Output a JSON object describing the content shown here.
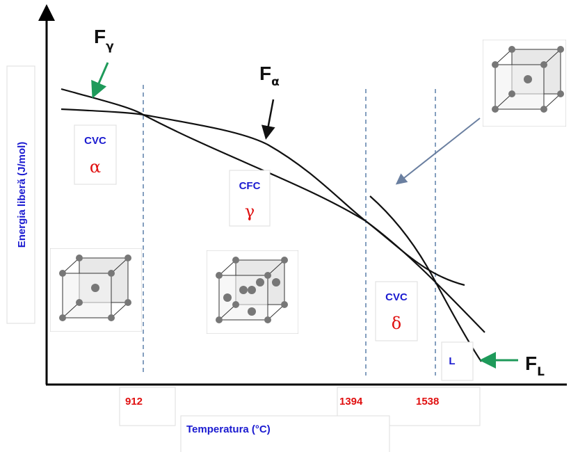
{
  "axes": {
    "y_label": "Energia liberă (J/mol)",
    "x_label": "Temperatura (°C)"
  },
  "temperatures": [
    "912",
    "1394",
    "1538"
  ],
  "curves": [
    {
      "label": "F",
      "subscript": "γ"
    },
    {
      "label": "F",
      "subscript": "α"
    },
    {
      "label": "F",
      "subscript": "L"
    }
  ],
  "phases": [
    {
      "structure": "CVC",
      "symbol": "α"
    },
    {
      "structure": "CFC",
      "symbol": "γ"
    },
    {
      "structure": "CVC",
      "symbol": "δ"
    },
    {
      "structure": "L"
    }
  ]
}
